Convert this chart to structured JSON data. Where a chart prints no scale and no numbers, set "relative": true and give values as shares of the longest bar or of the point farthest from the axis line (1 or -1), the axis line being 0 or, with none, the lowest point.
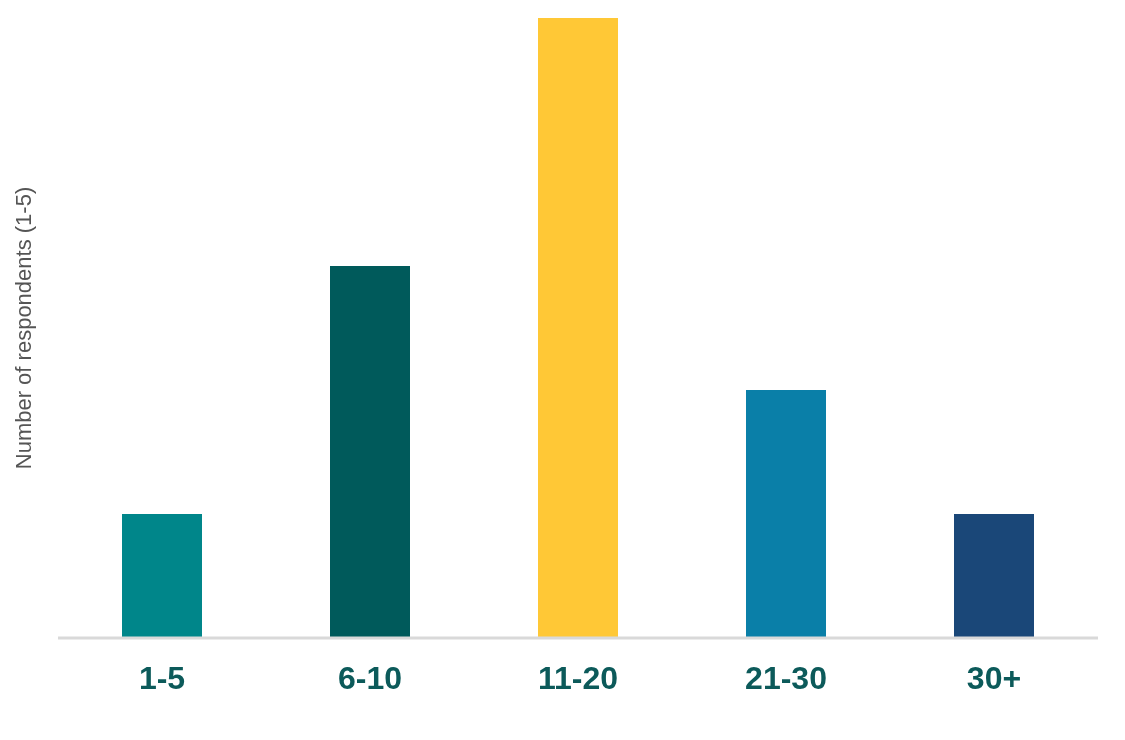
{
  "chart_data": {
    "type": "bar",
    "ylabel": "Number of respondents (1-5)",
    "relative": true,
    "categories": [
      "1-5",
      "6-10",
      "11-20",
      "21-30",
      "30+"
    ],
    "values": [
      0.2,
      0.6,
      1,
      0.4,
      0.2
    ],
    "colors": [
      "#00868a",
      "#005a5b",
      "#ffc836",
      "#0a7fa8",
      "#1a4778"
    ]
  }
}
